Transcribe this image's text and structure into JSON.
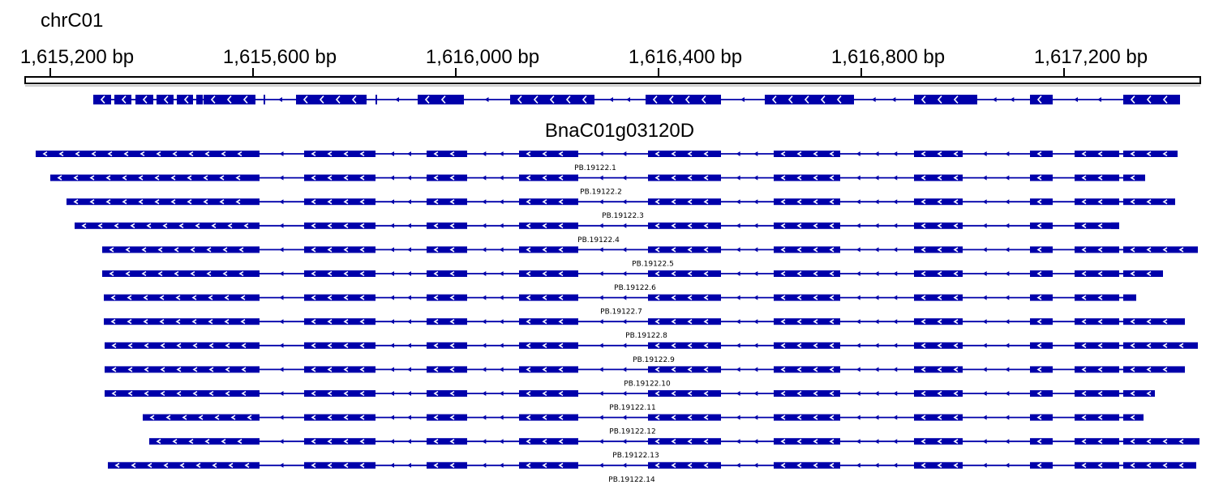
{
  "chromosome": "chrC01",
  "ruler": {
    "ticks": [
      {
        "pos": 1615200,
        "label": "1,615,200 bp"
      },
      {
        "pos": 1615600,
        "label": "1,615,600 bp"
      },
      {
        "pos": 1616000,
        "label": "1,616,000 bp"
      },
      {
        "pos": 1616400,
        "label": "1,616,400 bp"
      },
      {
        "pos": 1616800,
        "label": "1,616,800 bp"
      },
      {
        "pos": 1617200,
        "label": "1,617,200 bp"
      }
    ]
  },
  "gene": {
    "name": "BnaC01g03120D",
    "strand": "-"
  },
  "transcripts": [
    {
      "id": "PB.19122.1"
    },
    {
      "id": "PB.19122.2"
    },
    {
      "id": "PB.19122.3"
    },
    {
      "id": "PB.19122.4"
    },
    {
      "id": "PB.19122.5"
    },
    {
      "id": "PB.19122.6"
    },
    {
      "id": "PB.19122.7"
    },
    {
      "id": "PB.19122.8"
    },
    {
      "id": "PB.19122.9"
    },
    {
      "id": "PB.19122.10"
    },
    {
      "id": "PB.19122.11"
    },
    {
      "id": "PB.19122.12"
    },
    {
      "id": "PB.19122.13"
    },
    {
      "id": "PB.19122.14"
    }
  ],
  "colors": {
    "feature": "#0000aa",
    "arrow": "#ffffff",
    "ruler": "#000000"
  }
}
